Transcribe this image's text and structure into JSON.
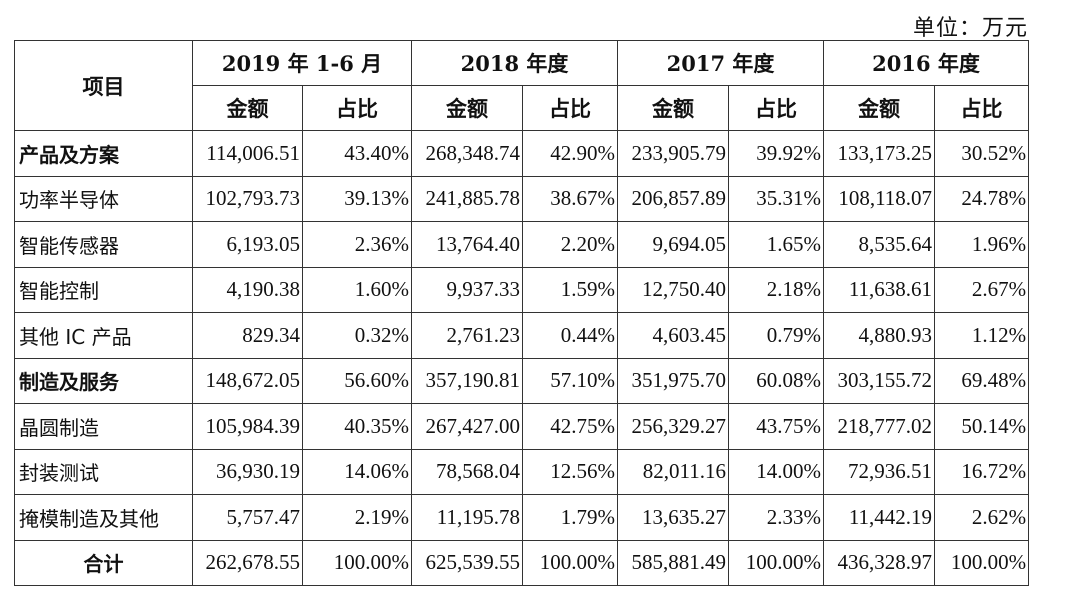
{
  "unit_label": "单位：万元",
  "header": {
    "item": "项目",
    "periods": [
      "2019 年 1-6 月",
      "2018 年度",
      "2017 年度",
      "2016 年度"
    ],
    "amount": "金额",
    "ratio": "占比"
  },
  "rows": [
    {
      "label": "产品及方案",
      "bold": true,
      "values": [
        "114,006.51",
        "43.40%",
        "268,348.74",
        "42.90%",
        "233,905.79",
        "39.92%",
        "133,173.25",
        "30.52%"
      ]
    },
    {
      "label": "功率半导体",
      "bold": false,
      "values": [
        "102,793.73",
        "39.13%",
        "241,885.78",
        "38.67%",
        "206,857.89",
        "35.31%",
        "108,118.07",
        "24.78%"
      ]
    },
    {
      "label": "智能传感器",
      "bold": false,
      "values": [
        "6,193.05",
        "2.36%",
        "13,764.40",
        "2.20%",
        "9,694.05",
        "1.65%",
        "8,535.64",
        "1.96%"
      ]
    },
    {
      "label": "智能控制",
      "bold": false,
      "values": [
        "4,190.38",
        "1.60%",
        "9,937.33",
        "1.59%",
        "12,750.40",
        "2.18%",
        "11,638.61",
        "2.67%"
      ]
    },
    {
      "label": "其他 IC 产品",
      "bold": false,
      "values": [
        "829.34",
        "0.32%",
        "2,761.23",
        "0.44%",
        "4,603.45",
        "0.79%",
        "4,880.93",
        "1.12%"
      ]
    },
    {
      "label": "制造及服务",
      "bold": true,
      "values": [
        "148,672.05",
        "56.60%",
        "357,190.81",
        "57.10%",
        "351,975.70",
        "60.08%",
        "303,155.72",
        "69.48%"
      ]
    },
    {
      "label": "晶圆制造",
      "bold": false,
      "values": [
        "105,984.39",
        "40.35%",
        "267,427.00",
        "42.75%",
        "256,329.27",
        "43.75%",
        "218,777.02",
        "50.14%"
      ]
    },
    {
      "label": "封装测试",
      "bold": false,
      "values": [
        "36,930.19",
        "14.06%",
        "78,568.04",
        "12.56%",
        "82,011.16",
        "14.00%",
        "72,936.51",
        "16.72%"
      ]
    },
    {
      "label": "掩模制造及其他",
      "bold": false,
      "values": [
        "5,757.47",
        "2.19%",
        "11,195.78",
        "1.79%",
        "13,635.27",
        "2.33%",
        "11,442.19",
        "2.62%"
      ]
    },
    {
      "label": "合计",
      "bold": true,
      "center": true,
      "values": [
        "262,678.55",
        "100.00%",
        "625,539.55",
        "100.00%",
        "585,881.49",
        "100.00%",
        "436,328.97",
        "100.00%"
      ]
    }
  ]
}
